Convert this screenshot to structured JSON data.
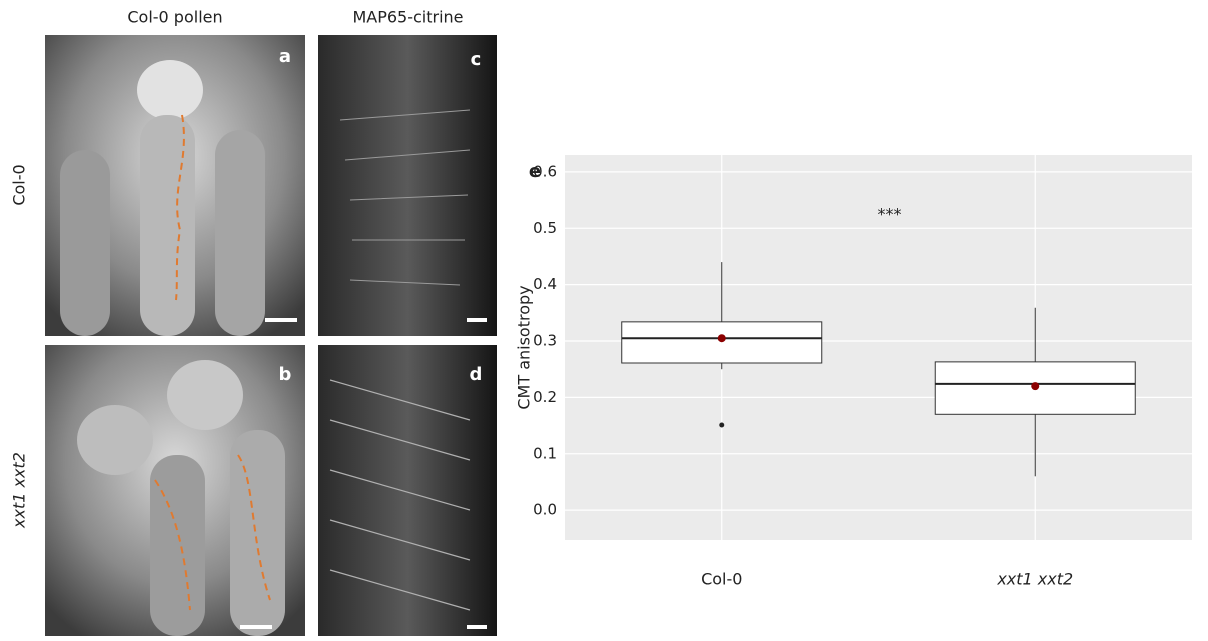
{
  "column_titles": [
    "Col-0 pollen",
    "MAP65-citrine"
  ],
  "row_labels": [
    "Col-0",
    "xxt1 xxt2"
  ],
  "panel_letters": [
    "a",
    "b",
    "c",
    "d"
  ],
  "chart_data": {
    "type": "box",
    "panel_letter": "e",
    "y_label": "CMT anisotropy",
    "annotation": "***",
    "categories": [
      "Col-0",
      "xxt1 xxt2"
    ],
    "series": [
      {
        "q1": 0.261,
        "median": 0.305,
        "q3": 0.334,
        "whisker_low": 0.25,
        "whisker_high": 0.44,
        "mean": 0.305,
        "outliers": [
          0.151
        ]
      },
      {
        "q1": 0.17,
        "median": 0.224,
        "q3": 0.263,
        "whisker_low": 0.06,
        "whisker_high": 0.359,
        "mean": 0.22,
        "outliers": []
      }
    ],
    "box_color": "#ffffff",
    "mean_color": "#8b0000",
    "ylim": [
      -0.053,
      0.63
    ],
    "yticks": [
      {
        "value": 0,
        "label": "0.0"
      },
      0.1,
      0.2,
      0.3,
      0.4,
      0.5,
      0.6
    ],
    "grid": true
  }
}
